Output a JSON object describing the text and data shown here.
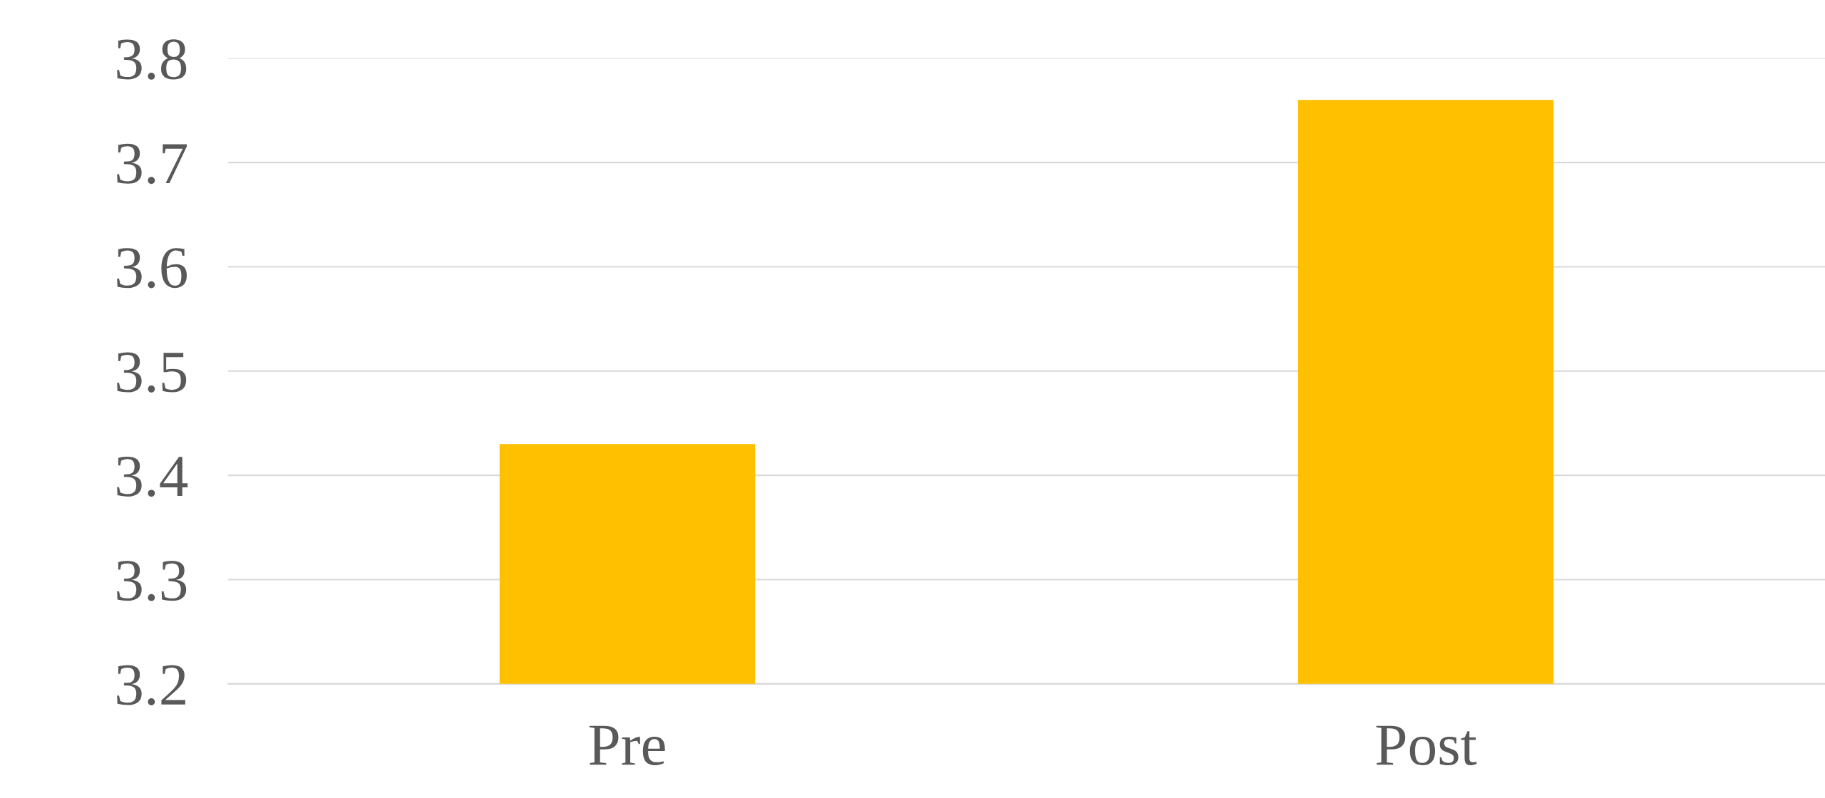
{
  "chart_data": {
    "type": "bar",
    "categories": [
      "Pre",
      "Post"
    ],
    "series": [
      {
        "color": "#ffc000",
        "values": [
          3.43,
          3.76
        ]
      }
    ],
    "ylim": [
      3.2,
      3.8
    ],
    "yticks": [
      3.2,
      3.3,
      3.4,
      3.5,
      3.6,
      3.7,
      3.8
    ],
    "grid": "y",
    "legend": false
  }
}
